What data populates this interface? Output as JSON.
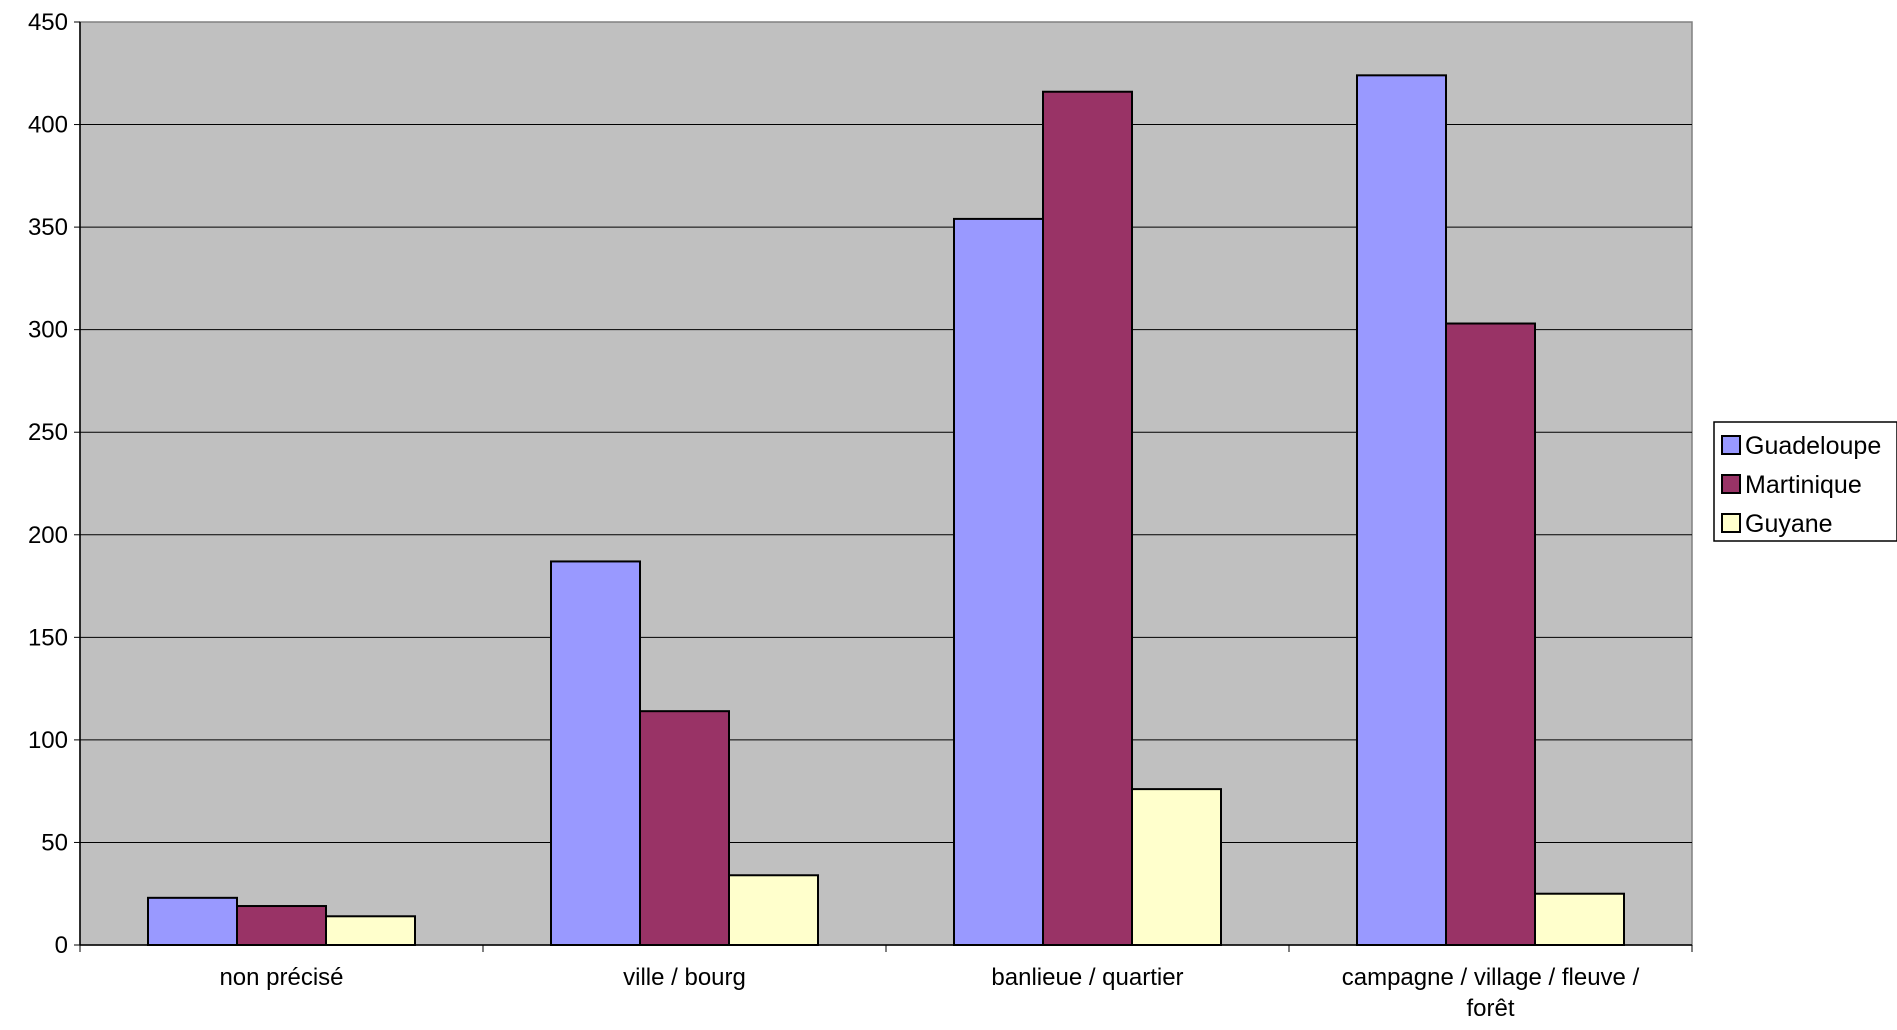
{
  "chart_data": {
    "type": "bar",
    "categories": [
      "non précisé",
      "ville / bourg",
      "banlieue / quartier",
      "campagne / village / fleuve / forêt"
    ],
    "series": [
      {
        "name": "Guadeloupe",
        "values": [
          23,
          187,
          354,
          424
        ],
        "color": "#9999ff"
      },
      {
        "name": "Martinique",
        "values": [
          19,
          114,
          416,
          303
        ],
        "color": "#993366"
      },
      {
        "name": "Guyane",
        "values": [
          14,
          34,
          76,
          25
        ],
        "color": "#ffffcc"
      }
    ],
    "title": "",
    "xlabel": "",
    "ylabel": "",
    "ylim": [
      0,
      450
    ],
    "yticks": [
      0,
      50,
      100,
      150,
      200,
      250,
      300,
      350,
      400,
      450
    ],
    "grid": true,
    "legend_position": "right",
    "plot_background": "#c0c0c0"
  }
}
